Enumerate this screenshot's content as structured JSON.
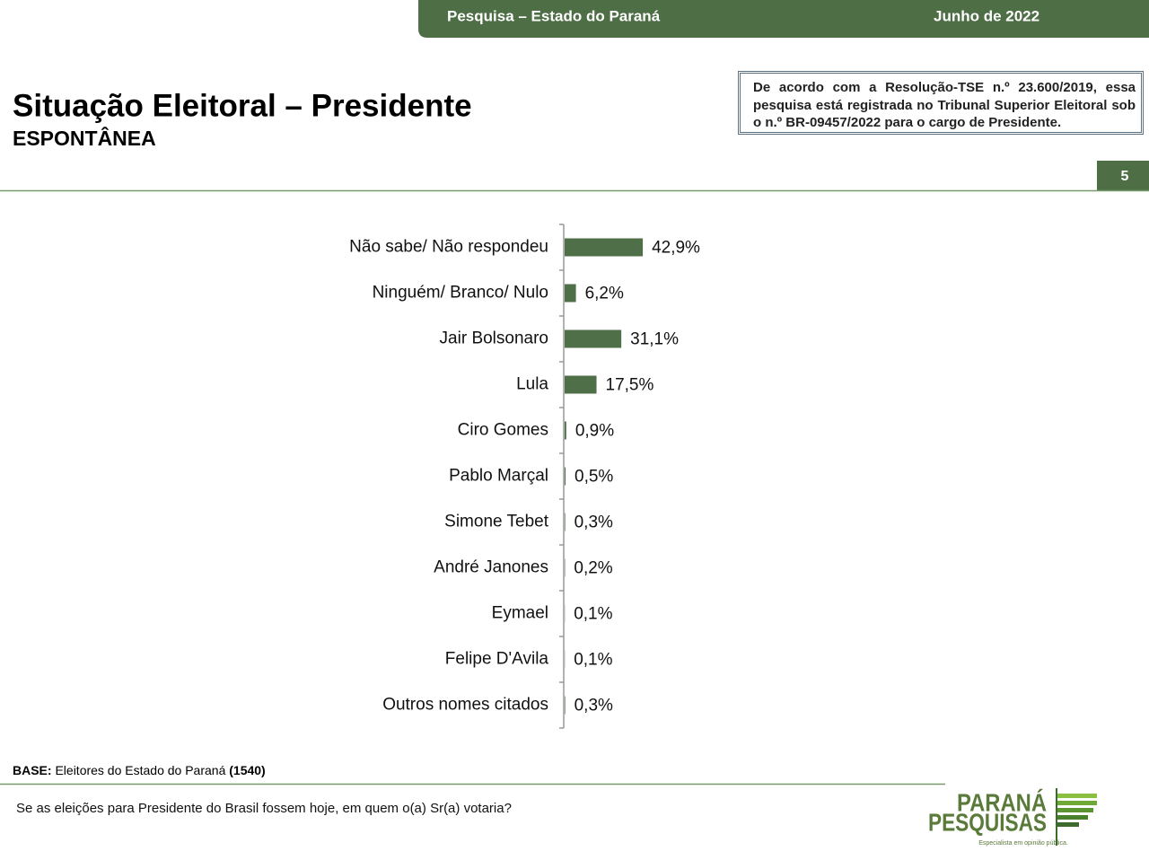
{
  "header": {
    "survey": "Pesquisa – Estado do Paraná",
    "date": "Junho de 2022"
  },
  "title": "Situação Eleitoral – Presidente",
  "subtitle": "ESPONTÂNEA",
  "notice": "De acordo com a Resolução-TSE n.º 23.600/2019, essa pesquisa está registrada no Tribunal Superior Eleitoral sob o n.º BR-09457/2022 para o cargo de Presidente.",
  "page_number": 5,
  "base": {
    "label": "BASE:",
    "text": "Eleitores do Estado do Paraná",
    "count": "(1540)"
  },
  "question": "Se as eleições para Presidente do Brasil fossem hoje, em quem o(a) Sr(a) votaria?",
  "logo": {
    "line1": "PARANÁ",
    "line2": "PESQUISAS",
    "tagline": "Especialista em opinião pública."
  },
  "chart_data": {
    "type": "bar",
    "orientation": "horizontal",
    "categories": [
      "Não sabe/ Não respondeu",
      "Ninguém/ Branco/ Nulo",
      "Jair Bolsonaro",
      "Lula",
      "Ciro Gomes",
      "Pablo Marçal",
      "Simone Tebet",
      "André Janones",
      "Eymael",
      "Felipe D'Avila",
      "Outros nomes citados"
    ],
    "values": [
      42.9,
      6.2,
      31.1,
      17.5,
      0.9,
      0.5,
      0.3,
      0.2,
      0.1,
      0.1,
      0.3
    ],
    "value_labels": [
      "42,9%",
      "6,2%",
      "31,1%",
      "17,5%",
      "0,9%",
      "0,5%",
      "0,3%",
      "0,2%",
      "0,1%",
      "0,1%",
      "0,3%"
    ],
    "color": "#4f6f49"
  }
}
